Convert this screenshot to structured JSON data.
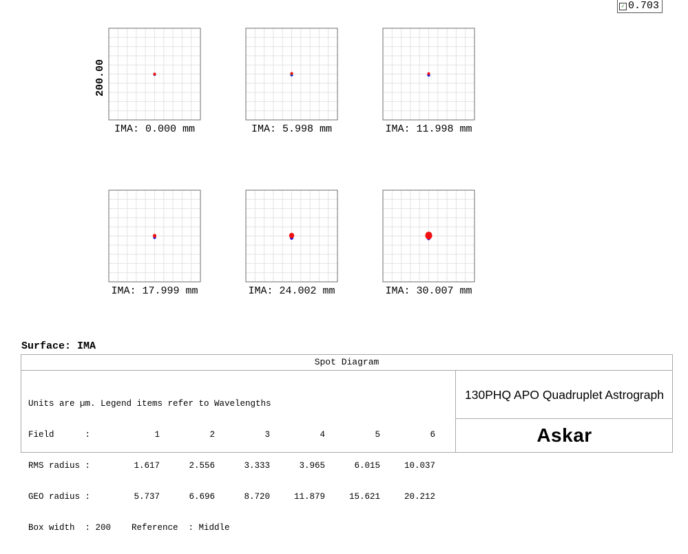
{
  "value_badge": "0.703",
  "surface_title": "Surface: IMA",
  "panel_title": "Spot Diagram",
  "info": {
    "line1": "Units are µm. Legend items refer to Wavelengths",
    "field_label": "Field      :",
    "field_values": [
      "1",
      "2",
      "3",
      "4",
      "5",
      "6"
    ],
    "rms_label": "RMS radius :",
    "rms_values": [
      "1.617",
      "2.556",
      "3.333",
      "3.965",
      "6.015",
      "10.037"
    ],
    "geo_label": "GEO radius :",
    "geo_values": [
      "5.737",
      "6.696",
      "8.720",
      "11.879",
      "15.621",
      "20.212"
    ],
    "last_line": "Box width  : 200    Reference  : Middle"
  },
  "design_name": "130PHQ APO Quadruplet Astrograph",
  "logo_text": "Askar",
  "colors": {
    "wave_blue": "#1414e6",
    "wave_green": "#18a018",
    "wave_red": "#f01010",
    "grid": "#e3e3e3",
    "frame": "#6e6e6e"
  },
  "chart_data": {
    "type": "scatter",
    "title": "Spot Diagram",
    "box_width_um": 200,
    "scale_label": "200.00",
    "panels": [
      {
        "label": "IMA: 0.000 mm",
        "field": 1,
        "rms_radius_um": 1.617,
        "geo_radius_um": 5.737,
        "series": [
          {
            "color": "blue",
            "cx": 0,
            "cy": -2,
            "r": 5
          },
          {
            "color": "green",
            "cx": 0,
            "cy": 0,
            "r": 4
          },
          {
            "color": "red",
            "cx": 0,
            "cy": 0,
            "r": 2
          }
        ]
      },
      {
        "label": "IMA: 5.998 mm",
        "field": 2,
        "rms_radius_um": 2.556,
        "geo_radius_um": 6.696,
        "series": [
          {
            "color": "blue",
            "cx": 0,
            "cy": -3,
            "r": 6
          },
          {
            "color": "green",
            "cx": 0,
            "cy": 1,
            "r": 4
          },
          {
            "color": "red",
            "cx": 0,
            "cy": 3,
            "r": 3
          }
        ]
      },
      {
        "label": "IMA: 11.998 mm",
        "field": 3,
        "rms_radius_um": 3.333,
        "geo_radius_um": 8.72,
        "series": [
          {
            "color": "blue",
            "cx": 0,
            "cy": -4,
            "r": 6
          },
          {
            "color": "red",
            "cx": 0,
            "cy": 2,
            "r": 5
          }
        ]
      },
      {
        "label": "IMA: 17.999 mm",
        "field": 4,
        "rms_radius_um": 3.965,
        "geo_radius_um": 11.879,
        "series": [
          {
            "color": "blue",
            "cx": 0,
            "cy": -6,
            "r": 6
          },
          {
            "color": "red",
            "cx": 0,
            "cy": 1,
            "r": 7
          }
        ]
      },
      {
        "label": "IMA: 24.002 mm",
        "field": 5,
        "rms_radius_um": 6.015,
        "geo_radius_um": 15.621,
        "series": [
          {
            "color": "blue",
            "cx": 0,
            "cy": -8,
            "r": 7
          },
          {
            "color": "red",
            "cx": 0,
            "cy": 2,
            "r": 10
          }
        ]
      },
      {
        "label": "IMA: 30.007 mm",
        "field": 6,
        "rms_radius_um": 10.037,
        "geo_radius_um": 20.212,
        "series": [
          {
            "color": "blue",
            "cx": 0,
            "cy": -10,
            "r": 7
          },
          {
            "color": "red",
            "cx": 0,
            "cy": 2,
            "r": 14
          }
        ]
      }
    ]
  }
}
